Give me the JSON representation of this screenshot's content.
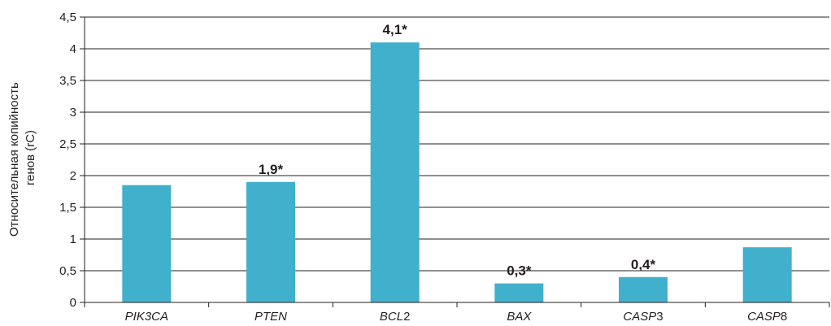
{
  "chart_data": {
    "type": "bar",
    "categories": [
      {
        "italic": "PIK3CA",
        "plain": ""
      },
      {
        "italic": "PTEN",
        "plain": ""
      },
      {
        "italic": "BCL",
        "plain": "2"
      },
      {
        "italic": "BAX",
        "plain": ""
      },
      {
        "italic": "CASP",
        "plain": "3"
      },
      {
        "italic": "CASP",
        "plain": "8"
      }
    ],
    "values": [
      1.85,
      1.9,
      4.1,
      0.3,
      0.4,
      0.87
    ],
    "data_labels": [
      "",
      "1,9*",
      "4,1*",
      "0,3*",
      "0,4*",
      ""
    ],
    "ylabel_lines": [
      "Относительная копийность",
      "генов (rC)"
    ],
    "ylim": [
      0,
      4.5
    ],
    "yticks": [
      0,
      0.5,
      1,
      1.5,
      2,
      2.5,
      3,
      3.5,
      4,
      4.5
    ],
    "ytick_labels": [
      "0",
      "0,5",
      "1",
      "1,5",
      "2",
      "2,5",
      "3",
      "3,5",
      "4",
      "4,5"
    ],
    "grid": true,
    "bar_color": "#41b0cc",
    "grid_color": "#231f20"
  }
}
